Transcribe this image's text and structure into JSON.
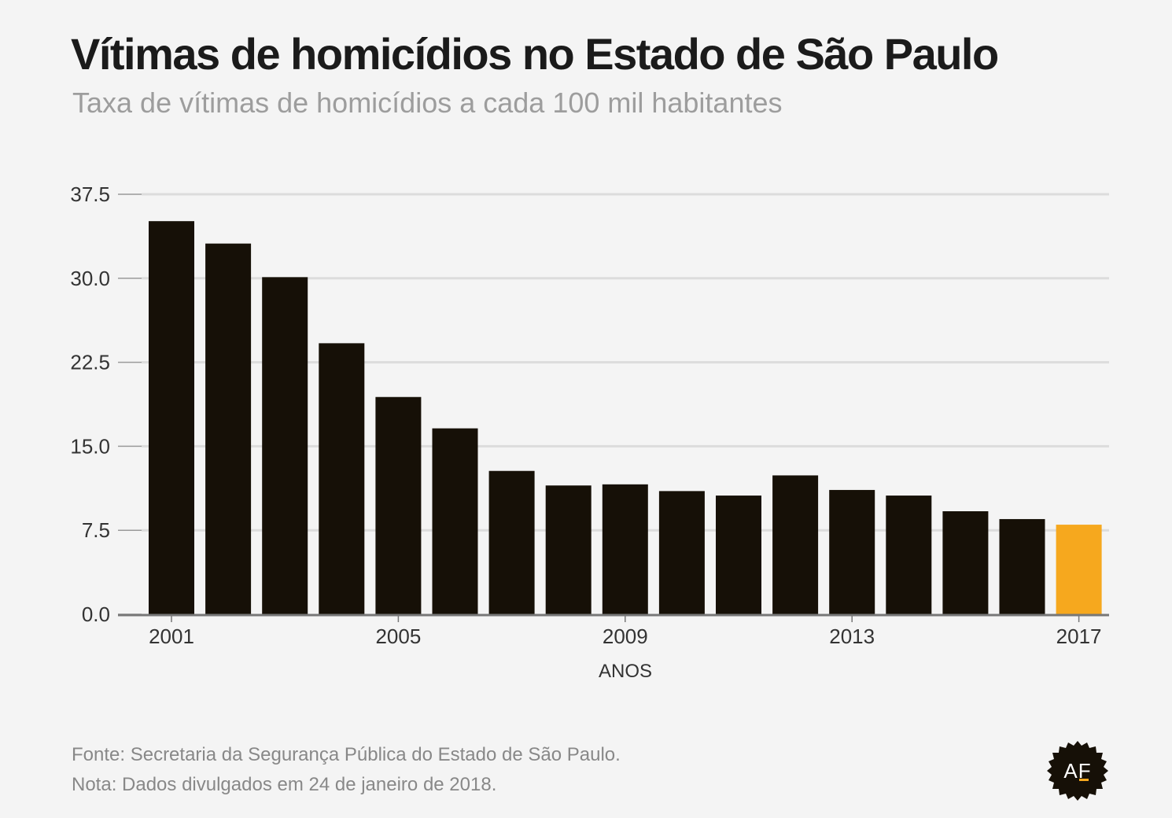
{
  "header": {
    "title": "Vítimas de homicídios no Estado de São Paulo",
    "subtitle": "Taxa de vítimas de homicídios a cada 100 mil habitantes"
  },
  "chart_data": {
    "type": "bar",
    "categories": [
      "2001",
      "2002",
      "2003",
      "2004",
      "2005",
      "2006",
      "2007",
      "2008",
      "2009",
      "2010",
      "2011",
      "2012",
      "2013",
      "2014",
      "2015",
      "2016",
      "2017"
    ],
    "values": [
      35.1,
      33.1,
      30.1,
      24.2,
      19.4,
      16.6,
      12.8,
      11.5,
      11.6,
      11.0,
      10.6,
      12.4,
      11.1,
      10.6,
      9.2,
      8.5,
      8.0
    ],
    "highlight_index": 16,
    "bar_color": "#161007",
    "highlight_color": "#f6a81e",
    "xlabel": "ANOS",
    "ylabel": "",
    "ylim": [
      0,
      37.5
    ],
    "y_ticks": [
      "0.0",
      "7.5",
      "15.0",
      "22.5",
      "30.0",
      "37.5"
    ],
    "x_tick_labels": [
      "2001",
      "2005",
      "2009",
      "2013",
      "2017"
    ],
    "grid": true,
    "legend": "none"
  },
  "footer": {
    "source": "Fonte: Secretaria da Segurança Pública do Estado de São Paulo.",
    "note": "Nota: Dados divulgados em 24 de janeiro de 2018."
  },
  "logo": {
    "text": "AF",
    "background": "#161007",
    "accent": "#f6a81e"
  }
}
